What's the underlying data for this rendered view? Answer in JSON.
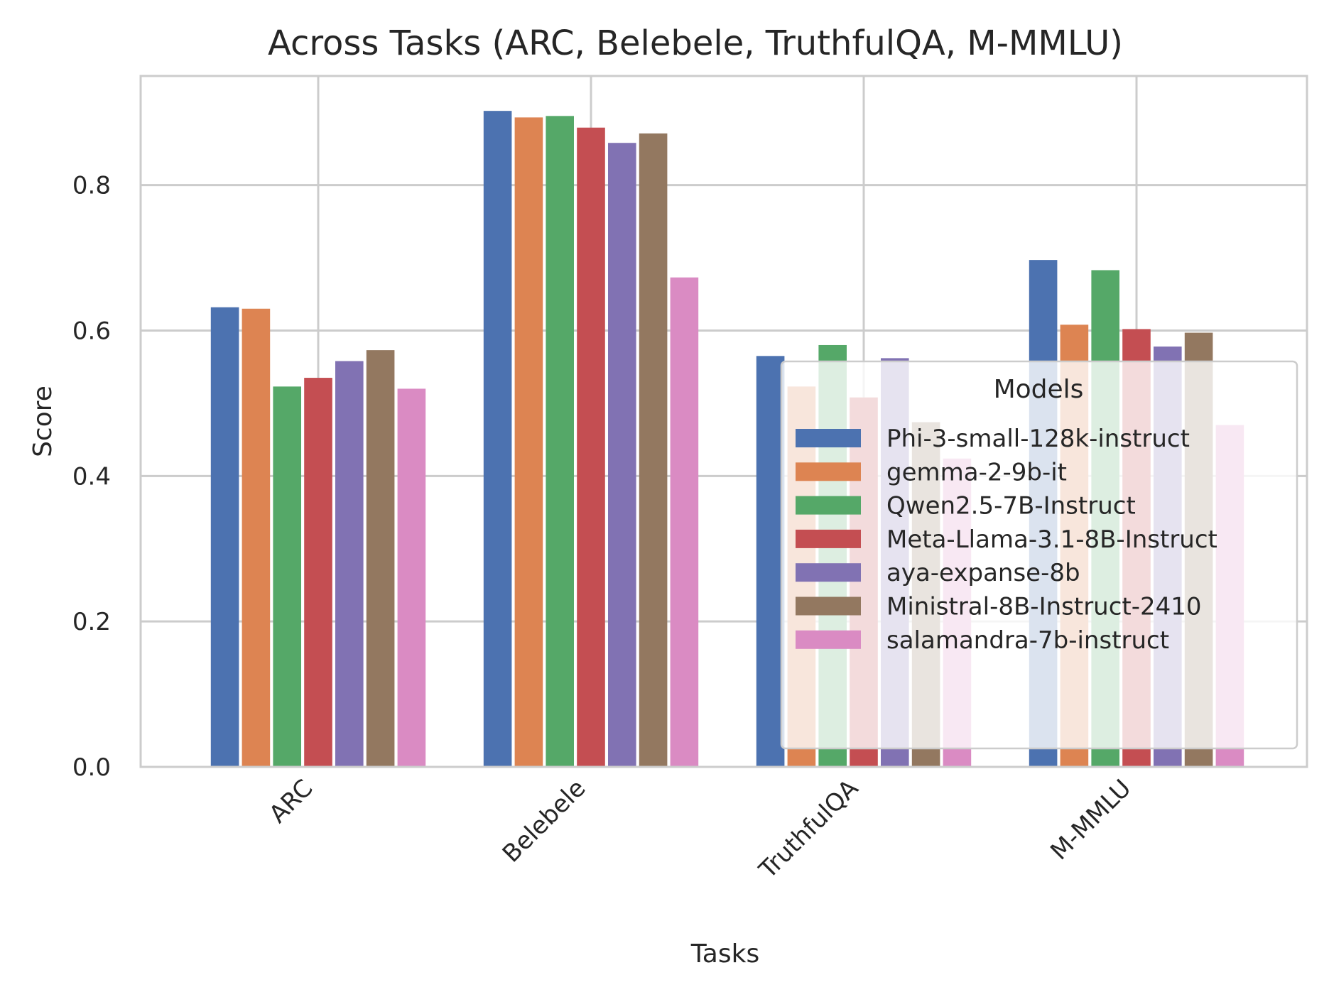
{
  "chart_data": {
    "type": "bar",
    "title": "Across Tasks (ARC, Belebele, TruthfulQA, M-MMLU)",
    "xlabel": "Tasks",
    "ylabel": "Score",
    "ylim": [
      0,
      0.95
    ],
    "yticks": [
      "0.0",
      "0.2",
      "0.4",
      "0.6",
      "0.8"
    ],
    "grid": true,
    "categories": [
      "ARC",
      "Belebele",
      "TruthfulQA",
      "M-MMLU"
    ],
    "legend": {
      "title": "Models",
      "position": "lower right"
    },
    "series": [
      {
        "name": "Phi-3-small-128k-instruct",
        "color": "#4c72b0",
        "values": [
          0.632,
          0.902,
          0.565,
          0.697
        ]
      },
      {
        "name": "gemma-2-9b-it",
        "color": "#dd8452",
        "values": [
          0.63,
          0.893,
          0.523,
          0.608
        ]
      },
      {
        "name": "Qwen2.5-7B-Instruct",
        "color": "#55a868",
        "values": [
          0.523,
          0.895,
          0.58,
          0.683
        ]
      },
      {
        "name": "Meta-Llama-3.1-8B-Instruct",
        "color": "#c44e52",
        "values": [
          0.535,
          0.879,
          0.508,
          0.602
        ]
      },
      {
        "name": "aya-expanse-8b",
        "color": "#8172b3",
        "values": [
          0.558,
          0.858,
          0.562,
          0.578
        ]
      },
      {
        "name": "Ministral-8B-Instruct-2410",
        "color": "#937860",
        "values": [
          0.573,
          0.871,
          0.474,
          0.597
        ]
      },
      {
        "name": "salamandra-7b-instruct",
        "color": "#da8bc3",
        "values": [
          0.52,
          0.673,
          0.424,
          0.47
        ]
      }
    ]
  }
}
